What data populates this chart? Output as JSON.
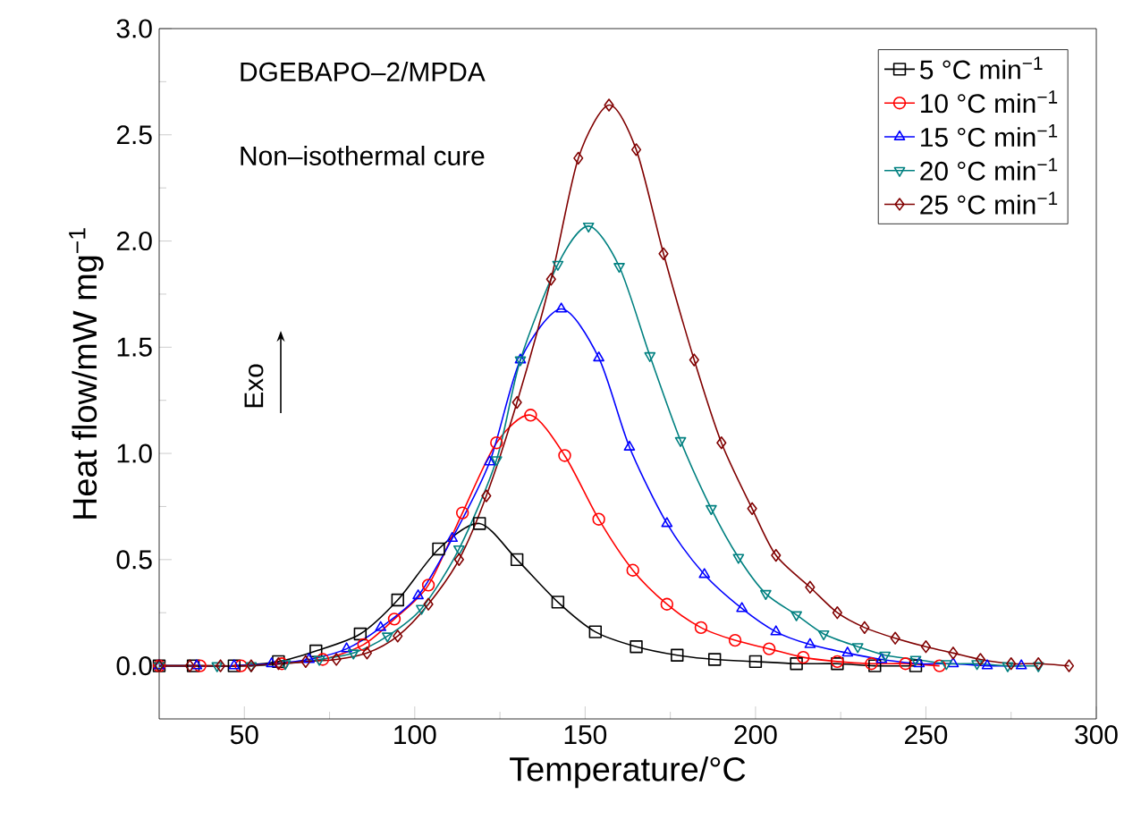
{
  "chart_data": {
    "type": "line",
    "xlabel": "Temperature/°C",
    "ylabel": "Heat flow/mW mg$^{−1}$",
    "annotations": [
      "DGEBAPO–2/MPDA",
      "Non–isothermal cure",
      "Exo"
    ],
    "xlim": [
      25,
      300
    ],
    "ylim": [
      -0.25,
      3.0
    ],
    "xticks": [
      50,
      100,
      150,
      200,
      250,
      300
    ],
    "yticks": [
      {
        "value": 0,
        "label": "0.0"
      },
      {
        "value": 0.5,
        "label": "0.5"
      },
      {
        "value": 1.0,
        "label": "1.0"
      },
      {
        "value": 1.5,
        "label": "1.5"
      },
      {
        "value": 2.0,
        "label": "2.0"
      },
      {
        "value": 2.5,
        "label": "2.5"
      },
      {
        "value": 3.0,
        "label": "3.0"
      }
    ],
    "grid": false,
    "legend": "top right",
    "series": [
      {
        "name": "5 °C min$^{−1}$",
        "color": "#000000",
        "marker": "square",
        "x": [
          25,
          35,
          47,
          60,
          71,
          84,
          95,
          107,
          119,
          130,
          142,
          153,
          165,
          177,
          188,
          200,
          212,
          224,
          235,
          247
        ],
        "values": [
          0,
          0,
          0,
          0.02,
          0.07,
          0.15,
          0.31,
          0.55,
          0.67,
          0.5,
          0.3,
          0.16,
          0.09,
          0.05,
          0.03,
          0.02,
          0.01,
          0.01,
          0,
          0
        ]
      },
      {
        "name": "10 °C min$^{−1}$",
        "color": "#ff0000",
        "marker": "circle",
        "x": [
          25,
          37,
          49,
          61,
          73,
          85,
          94,
          104,
          114,
          124,
          134,
          144,
          154,
          164,
          174,
          184,
          194,
          204,
          214,
          224,
          234,
          244,
          254
        ],
        "values": [
          0,
          0,
          0,
          0.01,
          0.03,
          0.1,
          0.22,
          0.38,
          0.72,
          1.05,
          1.18,
          0.99,
          0.69,
          0.45,
          0.29,
          0.18,
          0.12,
          0.08,
          0.04,
          0.02,
          0.01,
          0.01,
          0
        ]
      },
      {
        "name": "15 °C min$^{−1}$",
        "color": "#0000ff",
        "marker": "triangle",
        "x": [
          25,
          36,
          47,
          58,
          69,
          80,
          90,
          101,
          111,
          122,
          131,
          143,
          154,
          163,
          174,
          185,
          196,
          206,
          216,
          227,
          237,
          248,
          258,
          268,
          278
        ],
        "values": [
          0,
          0,
          0,
          0.01,
          0.03,
          0.08,
          0.18,
          0.33,
          0.6,
          0.96,
          1.44,
          1.68,
          1.45,
          1.03,
          0.67,
          0.43,
          0.27,
          0.16,
          0.1,
          0.06,
          0.03,
          0.01,
          0.01,
          0,
          0
        ]
      },
      {
        "name": "20 °C min$^{−1}$",
        "color": "#008080",
        "marker": "triangle-down",
        "x": [
          25,
          42,
          52,
          62,
          72,
          82,
          92,
          102,
          113,
          124,
          131,
          142,
          151,
          160,
          169,
          178,
          187,
          195,
          203,
          212,
          220,
          230,
          238,
          247,
          256,
          265,
          274,
          283
        ],
        "values": [
          0,
          0,
          0,
          0.01,
          0.03,
          0.06,
          0.14,
          0.27,
          0.55,
          0.97,
          1.44,
          1.89,
          2.07,
          1.88,
          1.46,
          1.06,
          0.74,
          0.51,
          0.34,
          0.24,
          0.15,
          0.09,
          0.05,
          0.03,
          0.01,
          0.01,
          0,
          0
        ]
      },
      {
        "name": "25 °C min$^{−1}$",
        "color": "#800000",
        "marker": "diamond",
        "x": [
          25,
          34,
          43,
          52,
          60,
          68,
          77,
          86,
          95,
          104,
          113,
          121,
          130,
          140,
          148,
          157,
          165,
          173,
          182,
          190,
          199,
          206,
          216,
          224,
          232,
          241,
          250,
          258,
          266,
          275,
          283,
          292
        ],
        "values": [
          0,
          0,
          0,
          0,
          0.01,
          0.02,
          0.03,
          0.06,
          0.14,
          0.29,
          0.5,
          0.8,
          1.24,
          1.82,
          2.39,
          2.64,
          2.43,
          1.94,
          1.44,
          1.05,
          0.74,
          0.52,
          0.37,
          0.25,
          0.18,
          0.13,
          0.09,
          0.06,
          0.03,
          0.01,
          0.01,
          0
        ]
      }
    ]
  }
}
